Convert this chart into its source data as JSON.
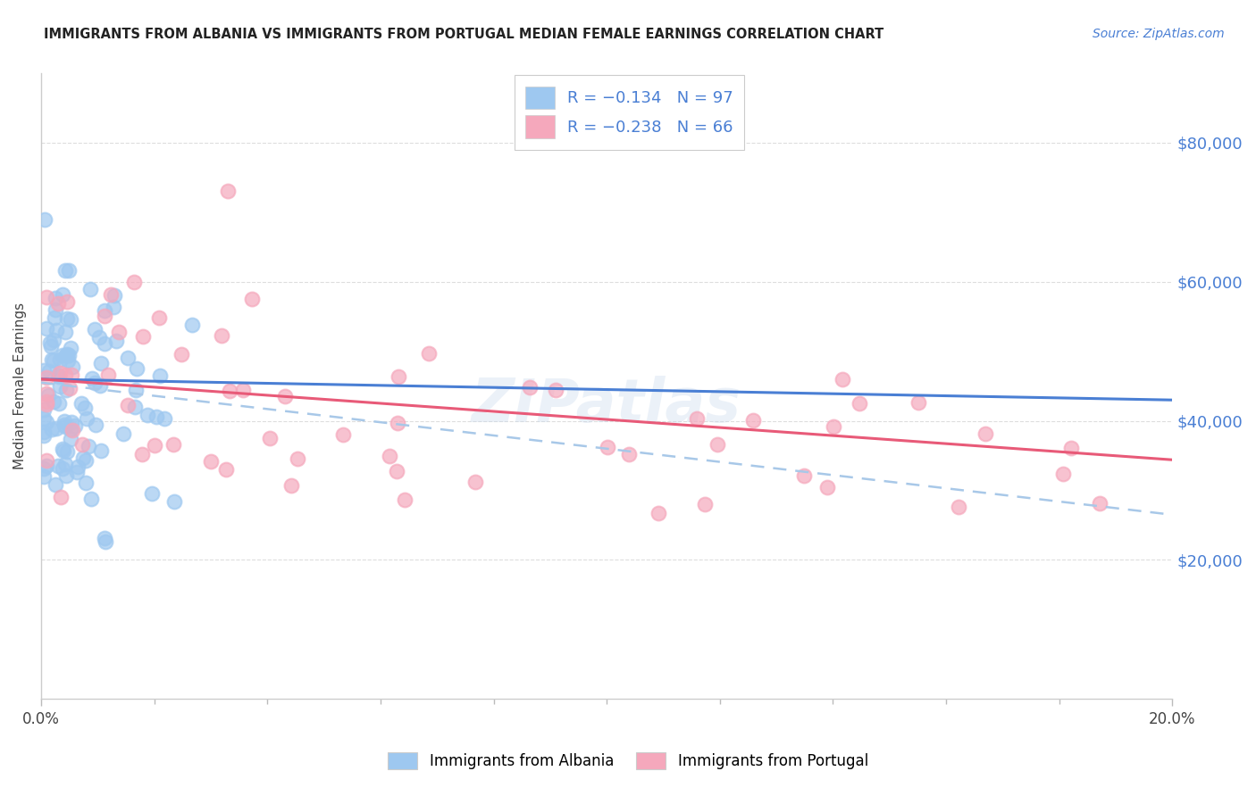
{
  "title": "IMMIGRANTS FROM ALBANIA VS IMMIGRANTS FROM PORTUGAL MEDIAN FEMALE EARNINGS CORRELATION CHART",
  "source": "Source: ZipAtlas.com",
  "ylabel": "Median Female Earnings",
  "ytick_values": [
    20000,
    40000,
    60000,
    80000
  ],
  "ytick_labels": [
    "$20,000",
    "$40,000",
    "$60,000",
    "$80,000"
  ],
  "xlim": [
    0.0,
    0.2
  ],
  "ylim": [
    0,
    90000
  ],
  "albania_color": "#9EC8F0",
  "portugal_color": "#F5A8BC",
  "albania_line_color": "#4A7FD4",
  "portugal_line_color": "#E85A78",
  "dashed_line_color": "#A8C8E8",
  "text_color_blue": "#4A7FD4",
  "albania_R": -0.134,
  "albania_N": 97,
  "portugal_R": -0.238,
  "portugal_N": 66,
  "watermark": "ZIPatlas",
  "legend_label_albania": "R = −0.134   N = 97",
  "legend_label_portugal": "R = −0.238   N = 66"
}
